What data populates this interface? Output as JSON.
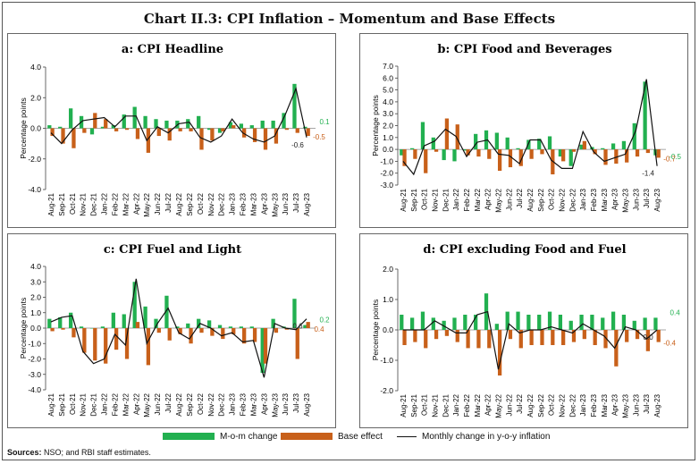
{
  "figure": {
    "title": "Chart II.3: CPI Inflation – Momentum and Base Effects",
    "sources_label": "Sources:",
    "sources_text": "NSO; and RBI staff estimates.",
    "legend": {
      "mom": "M-o-m change",
      "base": "Base effect",
      "line": "Monthly change in y-o-y inflation"
    },
    "colors": {
      "mom": "#22b050",
      "base": "#c8601a",
      "line": "#111111"
    }
  },
  "chart_data": [
    {
      "type": "bar",
      "title": "a: CPI Headline",
      "ylabel": "Percentage points",
      "ylim": [
        -4.0,
        4.0
      ],
      "yticks": [
        -4.0,
        -2.0,
        0.0,
        2.0,
        4.0
      ],
      "tick_labels": [
        "-4.0",
        "-2.0",
        "0.0",
        "2.0",
        "4.0"
      ],
      "categories": [
        "Aug-21",
        "Sep-21",
        "Oct-21",
        "Nov-21",
        "Dec-21",
        "Jan-22",
        "Feb-22",
        "Mar-22",
        "Apr-22",
        "May-22",
        "Jun-22",
        "Jul-22",
        "Aug-22",
        "Sep-22",
        "Oct-22",
        "Nov-22",
        "Dec-22",
        "Jan-23",
        "Feb-23",
        "Mar-23",
        "Apr-23",
        "May-23",
        "Jun-23",
        "Jul-23",
        "Aug-23"
      ],
      "series": [
        {
          "name": "M-o-m change",
          "values": [
            0.2,
            0.1,
            1.3,
            0.8,
            -0.4,
            0.1,
            0.2,
            0.9,
            1.4,
            0.8,
            0.6,
            0.5,
            0.5,
            0.6,
            0.8,
            -0.1,
            -0.3,
            0.4,
            0.3,
            0.2,
            0.5,
            0.5,
            1.0,
            2.9,
            0.1
          ]
        },
        {
          "name": "Base effect",
          "values": [
            -0.5,
            -1.0,
            -1.3,
            -0.3,
            1.0,
            0.6,
            -0.2,
            -0.1,
            -0.7,
            -1.6,
            -0.5,
            -0.8,
            -0.2,
            -0.2,
            -1.4,
            -0.8,
            -0.2,
            0.2,
            -0.6,
            -0.9,
            -1.4,
            -1.0,
            -0.1,
            -0.3,
            -0.5
          ]
        },
        {
          "name": "Monthly change in y-o-y inflation",
          "values": [
            -0.3,
            -1.0,
            -0.1,
            0.5,
            0.6,
            0.7,
            0.1,
            0.8,
            0.8,
            -0.8,
            0.1,
            -0.3,
            0.3,
            0.4,
            -0.6,
            -0.9,
            -0.5,
            0.6,
            -0.3,
            -0.7,
            -0.9,
            -0.5,
            0.9,
            2.6,
            -0.6
          ]
        }
      ],
      "annotations": [
        {
          "text": "0.1",
          "series": "M-o-m change",
          "at": "Aug-23"
        },
        {
          "text": "-0.6",
          "series": "Monthly change in y-o-y inflation",
          "at": "Aug-23"
        },
        {
          "text": "-0.5",
          "series": "Base effect",
          "at": "Aug-23"
        }
      ]
    },
    {
      "type": "bar",
      "title": "b: CPI Food and Beverages",
      "ylabel": "Percentage points",
      "ylim": [
        -3.0,
        7.0
      ],
      "yticks": [
        -3.0,
        -2.0,
        -1.0,
        0.0,
        1.0,
        2.0,
        3.0,
        4.0,
        5.0,
        6.0,
        7.0
      ],
      "tick_labels": [
        "-3.0",
        "-2.0",
        "-1.0",
        "0.0",
        "1.0",
        "2.0",
        "3.0",
        "4.0",
        "5.0",
        "6.0",
        "7.0"
      ],
      "categories": [
        "Aug-21",
        "Sep-21",
        "Oct-21",
        "Nov-21",
        "Dec-21",
        "Jan-22",
        "Feb-22",
        "Mar-22",
        "Apr-22",
        "May-22",
        "Jun-22",
        "Jul-22",
        "Aug-22",
        "Sep-22",
        "Oct-22",
        "Nov-22",
        "Dec-22",
        "Jan-23",
        "Feb-23",
        "Mar-23",
        "Apr-23",
        "May-23",
        "Jun-23",
        "Jul-23",
        "Aug-23"
      ],
      "series": [
        {
          "name": "M-o-m change",
          "values": [
            -0.5,
            0.1,
            2.3,
            1.0,
            -0.9,
            -1.0,
            -0.1,
            1.3,
            1.6,
            1.4,
            1.0,
            0.1,
            0.8,
            0.9,
            1.1,
            -0.6,
            -1.4,
            0.4,
            0.2,
            0.1,
            0.5,
            0.7,
            2.2,
            5.7,
            -0.5
          ]
        },
        {
          "name": "Base effect",
          "values": [
            -1.4,
            -0.8,
            -2.0,
            -0.2,
            2.6,
            2.1,
            -0.5,
            -0.6,
            -0.8,
            -1.8,
            -1.5,
            -1.4,
            -0.8,
            -0.4,
            -2.1,
            -1.0,
            -0.2,
            0.7,
            -0.4,
            -1.3,
            -1.2,
            -1.1,
            -0.6,
            -0.3,
            -0.7
          ]
        },
        {
          "name": "Monthly change in y-o-y inflation",
          "values": [
            -1.0,
            -2.1,
            0.3,
            0.7,
            1.7,
            1.1,
            -0.6,
            0.6,
            0.8,
            -0.4,
            -0.5,
            -1.2,
            0.8,
            0.8,
            -0.9,
            -1.6,
            -1.6,
            1.5,
            -0.2,
            -1.0,
            -0.7,
            -0.4,
            1.6,
            5.9,
            -1.4
          ]
        }
      ],
      "annotations": [
        {
          "text": "-0.5",
          "series": "M-o-m change",
          "at": "Aug-23"
        },
        {
          "text": "-1.4",
          "series": "Monthly change in y-o-y inflation",
          "at": "Aug-23"
        },
        {
          "text": "-0.7",
          "series": "Base effect",
          "at": "Aug-23"
        }
      ]
    },
    {
      "type": "bar",
      "title": "c: CPI Fuel and Light",
      "ylabel": "Percentage points",
      "ylim": [
        -4.0,
        4.0
      ],
      "yticks": [
        -4.0,
        -3.0,
        -2.0,
        -1.0,
        0.0,
        1.0,
        2.0,
        3.0,
        4.0
      ],
      "tick_labels": [
        "-4.0",
        "-3.0",
        "-2.0",
        "-1.0",
        "0.0",
        "1.0",
        "2.0",
        "3.0",
        "4.0"
      ],
      "categories": [
        "Aug-21",
        "Sep-21",
        "Oct-21",
        "Nov-21",
        "Dec-21",
        "Jan-22",
        "Feb-22",
        "Mar-22",
        "Apr-22",
        "May-22",
        "Jun-22",
        "Jul-22",
        "Aug-22",
        "Sep-22",
        "Oct-22",
        "Nov-22",
        "Dec-22",
        "Jan-23",
        "Feb-23",
        "Mar-23",
        "Apr-23",
        "May-23",
        "Jun-23",
        "Jul-23",
        "Aug-23"
      ],
      "series": [
        {
          "name": "M-o-m change",
          "values": [
            0.6,
            0.7,
            1.0,
            0.1,
            0.0,
            0.1,
            1.0,
            0.9,
            3.0,
            1.4,
            0.6,
            2.1,
            0.1,
            0.3,
            0.6,
            0.5,
            0.2,
            0.1,
            0.1,
            0.1,
            -2.9,
            0.6,
            0.1,
            1.9,
            0.2
          ]
        },
        {
          "name": "Base effect",
          "values": [
            -0.2,
            -0.1,
            -0.6,
            -1.6,
            -2.1,
            -2.3,
            -1.4,
            -2.0,
            0.4,
            -2.4,
            -0.3,
            -0.8,
            -0.4,
            -1.0,
            -0.3,
            -0.5,
            -0.7,
            -0.4,
            -1.0,
            -0.9,
            -2.3,
            -0.3,
            -0.1,
            -2.0,
            0.4
          ]
        },
        {
          "name": "Monthly change in y-o-y inflation",
          "values": [
            0.4,
            0.7,
            0.8,
            -1.5,
            -2.3,
            -2.0,
            -0.4,
            -1.1,
            3.2,
            -1.0,
            0.3,
            1.3,
            -0.3,
            -0.7,
            0.3,
            0.0,
            -0.5,
            -0.3,
            -0.9,
            -0.8,
            -3.2,
            0.3,
            0.0,
            -0.1,
            0.6
          ]
        }
      ],
      "annotations": [
        {
          "text": "0.2",
          "series": "M-o-m change",
          "at": "Aug-23"
        },
        {
          "text": "0.6",
          "series": "Monthly change in y-o-y inflation",
          "at": "Aug-23"
        },
        {
          "text": "0.4",
          "series": "Base effect",
          "at": "Aug-23"
        }
      ]
    },
    {
      "type": "bar",
      "title": "d: CPI excluding Food and Fuel",
      "ylabel": "Percentage points",
      "ylim": [
        -2.0,
        2.0
      ],
      "yticks": [
        -2.0,
        -1.0,
        0.0,
        1.0,
        2.0
      ],
      "tick_labels": [
        "-2.0",
        "-1.0",
        "0.0",
        "1.0",
        "2.0"
      ],
      "categories": [
        "Aug-21",
        "Sep-21",
        "Oct-21",
        "Nov-21",
        "Dec-21",
        "Jan-22",
        "Feb-22",
        "Mar-22",
        "Apr-22",
        "May-22",
        "Jun-22",
        "Jul-22",
        "Aug-22",
        "Sep-22",
        "Oct-22",
        "Nov-22",
        "Dec-22",
        "Jan-23",
        "Feb-23",
        "Mar-23",
        "Apr-23",
        "May-23",
        "Jun-23",
        "Jul-23",
        "Aug-23"
      ],
      "series": [
        {
          "name": "M-o-m change",
          "values": [
            0.5,
            0.4,
            0.6,
            0.4,
            0.3,
            0.4,
            0.5,
            0.5,
            1.2,
            0.2,
            0.6,
            0.6,
            0.5,
            0.5,
            0.6,
            0.5,
            0.3,
            0.5,
            0.5,
            0.4,
            0.6,
            0.5,
            0.3,
            0.4,
            0.4
          ]
        },
        {
          "name": "Base effect",
          "values": [
            -0.5,
            -0.4,
            -0.6,
            -0.3,
            -0.2,
            -0.4,
            -0.6,
            -0.6,
            -0.6,
            -1.5,
            -0.3,
            -0.6,
            -0.5,
            -0.5,
            -0.5,
            -0.5,
            -0.4,
            -0.3,
            -0.5,
            -0.6,
            -1.2,
            -0.4,
            -0.3,
            -0.7,
            -0.4
          ]
        },
        {
          "name": "Monthly change in y-o-y inflation",
          "values": [
            0.0,
            0.0,
            0.0,
            0.3,
            0.1,
            -0.1,
            -0.1,
            0.5,
            0.6,
            -1.3,
            0.2,
            -0.1,
            0.0,
            0.0,
            0.1,
            0.0,
            -0.1,
            0.2,
            0.0,
            -0.2,
            -0.6,
            0.1,
            0.0,
            -0.3,
            0.0
          ]
        }
      ],
      "annotations": [
        {
          "text": "0.4",
          "series": "M-o-m change",
          "at": "Aug-23"
        },
        {
          "text": "0.0",
          "series": "Monthly change in y-o-y inflation",
          "at": "Aug-23"
        },
        {
          "text": "-0.4",
          "series": "Base effect",
          "at": "Aug-23"
        }
      ]
    }
  ]
}
